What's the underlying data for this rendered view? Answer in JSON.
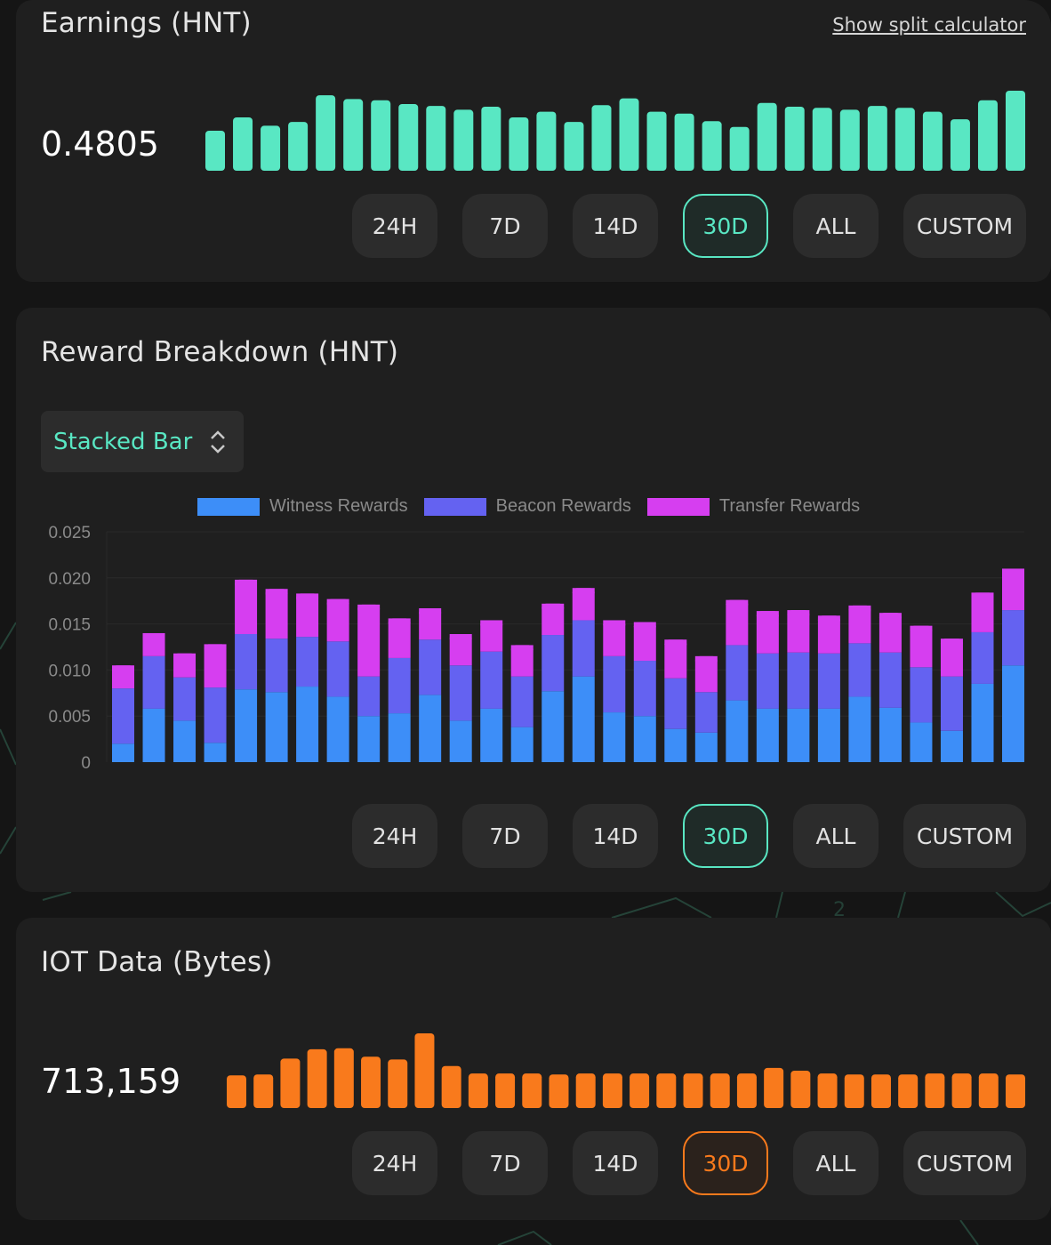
{
  "earnings": {
    "title": "Earnings (HNT)",
    "link": "Show split calculator",
    "value": "0.4805",
    "accent": "#59e7c3",
    "buttons": [
      "24H",
      "7D",
      "14D",
      "30D",
      "ALL",
      "CUSTOM"
    ],
    "selected": "30D"
  },
  "rewards": {
    "title": "Reward Breakdown (HNT)",
    "chart_type_label": "Stacked Bar",
    "buttons": [
      "24H",
      "7D",
      "14D",
      "30D",
      "ALL",
      "CUSTOM"
    ],
    "selected": "30D"
  },
  "iot": {
    "title": "IOT Data (Bytes)",
    "value": "713,159",
    "accent": "#f97a1c",
    "buttons": [
      "24H",
      "7D",
      "14D",
      "30D",
      "ALL",
      "CUSTOM"
    ],
    "selected": "30D"
  },
  "chart_data": [
    {
      "type": "bar",
      "name": "earnings-sparkline",
      "color": "#59e7c3",
      "values": [
        0.0105,
        0.014,
        0.0118,
        0.0128,
        0.0198,
        0.0188,
        0.0185,
        0.0175,
        0.017,
        0.016,
        0.0168,
        0.014,
        0.0155,
        0.0128,
        0.0172,
        0.019,
        0.0155,
        0.015,
        0.013,
        0.0115,
        0.0178,
        0.0168,
        0.0165,
        0.016,
        0.017,
        0.0165,
        0.0155,
        0.0135,
        0.0185,
        0.021
      ]
    },
    {
      "type": "bar",
      "stacked": true,
      "name": "reward-breakdown",
      "ylim": [
        0,
        0.025
      ],
      "yticks": [
        "0",
        "0.005",
        "0.010",
        "0.015",
        "0.020",
        "0.025"
      ],
      "ytick_values": [
        0,
        0.005,
        0.01,
        0.015,
        0.02,
        0.025
      ],
      "grid": true,
      "legend": "top-center",
      "series": [
        {
          "name": "Witness Rewards",
          "color": "#3d8ef8",
          "values": [
            0.002,
            0.0058,
            0.0045,
            0.0021,
            0.0079,
            0.0076,
            0.0082,
            0.0071,
            0.005,
            0.0053,
            0.0073,
            0.0045,
            0.0058,
            0.0038,
            0.0077,
            0.0093,
            0.0054,
            0.005,
            0.0036,
            0.0032,
            0.0067,
            0.0058,
            0.0058,
            0.0058,
            0.0071,
            0.0059,
            0.0043,
            0.0034,
            0.0085,
            0.0105
          ]
        },
        {
          "name": "Beacon Rewards",
          "color": "#6462f1",
          "values": [
            0.006,
            0.0057,
            0.0047,
            0.006,
            0.006,
            0.0058,
            0.0054,
            0.006,
            0.0043,
            0.006,
            0.006,
            0.006,
            0.0062,
            0.0055,
            0.0061,
            0.0061,
            0.0061,
            0.006,
            0.0055,
            0.0044,
            0.006,
            0.006,
            0.0061,
            0.006,
            0.0058,
            0.006,
            0.006,
            0.0059,
            0.0056,
            0.006
          ]
        },
        {
          "name": "Transfer Rewards",
          "color": "#d63ef0",
          "values": [
            0.0025,
            0.0025,
            0.0026,
            0.0047,
            0.0059,
            0.0054,
            0.0047,
            0.0046,
            0.0078,
            0.0043,
            0.0034,
            0.0034,
            0.0034,
            0.0034,
            0.0034,
            0.0035,
            0.0039,
            0.0042,
            0.0042,
            0.0039,
            0.0049,
            0.0046,
            0.0046,
            0.0041,
            0.0041,
            0.0043,
            0.0045,
            0.0041,
            0.0043,
            0.0045
          ]
        }
      ]
    },
    {
      "type": "bar",
      "name": "iot-sparkline",
      "color": "#f97a1c",
      "values": [
        35,
        36,
        53,
        63,
        64,
        55,
        52,
        80,
        45,
        37,
        37,
        37,
        36,
        37,
        37,
        37,
        37,
        37,
        37,
        37,
        43,
        40,
        37,
        36,
        36,
        36,
        37,
        37,
        37,
        36
      ]
    }
  ]
}
